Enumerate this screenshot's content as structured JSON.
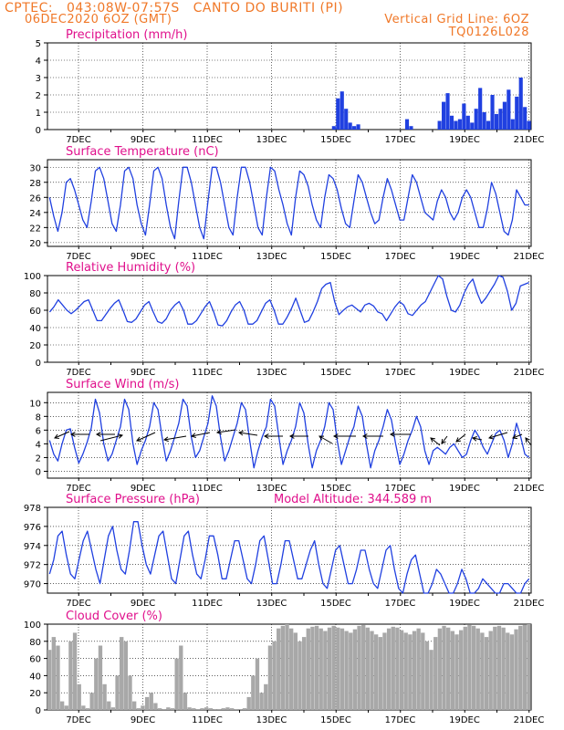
{
  "header": {
    "line1_left": "CPTEC:   043:08W-07:57S   CANTO DO BURITI (PI)",
    "line2_left": "06DEC2020 6OZ (GMT)",
    "line2_right": "Vertical Grid Line: 6OZ",
    "line3_right": "TQ0126L028"
  },
  "colors": {
    "header": "#f07828",
    "title": "#e0108c",
    "line": "#2040e0",
    "cloud": "#a8a8a8",
    "grid": "#000000"
  },
  "x_axis_labels": [
    "7DEC",
    "9DEC",
    "11DEC",
    "13DEC",
    "15DEC",
    "17DEC",
    "19DEC",
    "21DEC"
  ],
  "chart_data": [
    {
      "type": "bar",
      "title": "Precipitation (mm/h)",
      "ylim": [
        0,
        5
      ],
      "yticks": [
        0,
        1,
        2,
        3,
        4,
        5
      ],
      "x_start": "06DEC2020 06Z",
      "step_hours": 3,
      "series": [
        {
          "values": [
            0,
            0,
            0,
            0,
            0,
            0,
            0,
            0,
            0,
            0,
            0,
            0,
            0,
            0,
            0,
            0,
            0,
            0,
            0,
            0,
            0,
            0,
            0,
            0,
            0,
            0,
            0,
            0,
            0,
            0,
            0,
            0,
            0,
            0,
            0,
            0,
            0,
            0,
            0,
            0,
            0,
            0,
            0,
            0,
            0,
            0,
            0,
            0,
            0,
            0,
            0,
            0,
            0,
            0,
            0,
            0,
            0,
            0,
            0,
            0,
            0,
            0,
            0,
            0,
            0,
            0,
            0,
            0,
            0,
            0,
            0.2,
            1.8,
            2.2,
            1.2,
            0.4,
            0.2,
            0.3,
            0,
            0,
            0,
            0,
            0,
            0,
            0,
            0,
            0,
            0,
            0,
            0.6,
            0.2,
            0,
            0,
            0,
            0,
            0,
            0,
            0.5,
            1.6,
            2.1,
            0.8,
            0.5,
            0.6,
            1.5,
            0.8,
            0.4,
            1.2,
            2.4,
            1.0,
            0.5,
            2.0,
            0.9,
            1.2,
            1.6,
            2.3,
            0.6,
            1.9,
            3.0,
            1.3,
            0.5
          ]
        }
      ]
    },
    {
      "type": "line",
      "title": "Surface Temperature (nC)",
      "ylim": [
        19.5,
        31
      ],
      "yticks": [
        20,
        22,
        24,
        26,
        28,
        30
      ],
      "x_start": "06DEC2020 06Z",
      "step_hours": 3,
      "series": [
        {
          "values": [
            26,
            23.5,
            21.5,
            24,
            28,
            28.5,
            27,
            25,
            23,
            22,
            25.5,
            29.5,
            30,
            28.5,
            25.5,
            22.5,
            21.5,
            25,
            29.5,
            30,
            28.5,
            25,
            22.5,
            21,
            25,
            29.5,
            30,
            28.5,
            25,
            22,
            20.5,
            25.5,
            30,
            30,
            28,
            25,
            22,
            20.5,
            25.5,
            30,
            30,
            28,
            25,
            22,
            21,
            26,
            30,
            30,
            28,
            25,
            22,
            21,
            26,
            30,
            29.5,
            27,
            25,
            22.5,
            21,
            26,
            29.5,
            29,
            27.5,
            25,
            23,
            22,
            26,
            29,
            28.5,
            27,
            24.5,
            22.5,
            22,
            25.5,
            29,
            28,
            26,
            24,
            22.5,
            23,
            26,
            28.5,
            27,
            25,
            23,
            23,
            26,
            29,
            28,
            26,
            24,
            23.5,
            23,
            25.5,
            27,
            26,
            24,
            23,
            24,
            26,
            27,
            26,
            24,
            22,
            22,
            24.5,
            28,
            26.5,
            24,
            21.5,
            21,
            23,
            27,
            26,
            25,
            25
          ]
        }
      ]
    },
    {
      "type": "line",
      "title": "Relative Humidity (%)",
      "ylim": [
        0,
        100
      ],
      "yticks": [
        0,
        20,
        40,
        60,
        80,
        100
      ],
      "x_start": "06DEC2020 06Z",
      "step_hours": 3,
      "series": [
        {
          "values": [
            58,
            64,
            72,
            66,
            60,
            56,
            60,
            65,
            70,
            72,
            60,
            48,
            48,
            55,
            62,
            68,
            72,
            60,
            47,
            46,
            50,
            58,
            66,
            70,
            58,
            47,
            45,
            50,
            60,
            66,
            70,
            60,
            44,
            44,
            48,
            56,
            64,
            70,
            58,
            43,
            42,
            48,
            58,
            66,
            70,
            60,
            44,
            44,
            48,
            58,
            68,
            72,
            60,
            44,
            44,
            52,
            62,
            74,
            60,
            46,
            48,
            58,
            70,
            85,
            90,
            92,
            70,
            55,
            60,
            64,
            66,
            62,
            58,
            66,
            68,
            65,
            58,
            56,
            48,
            56,
            64,
            70,
            66,
            56,
            54,
            60,
            66,
            70,
            80,
            90,
            100,
            96,
            76,
            60,
            58,
            66,
            80,
            90,
            96,
            80,
            68,
            74,
            82,
            90,
            100,
            98,
            82,
            60,
            68,
            88,
            90,
            92
          ]
        }
      ]
    },
    {
      "type": "line",
      "title": "Surface Wind (m/s)",
      "ylim": [
        -1,
        11.5
      ],
      "yticks": [
        0,
        2,
        4,
        6,
        8,
        10
      ],
      "x_start": "06DEC2020 06Z",
      "step_hours": 3,
      "series": [
        {
          "values": [
            4.5,
            2.5,
            1.5,
            4,
            6,
            6.2,
            3.5,
            1.2,
            2.5,
            4.2,
            6.3,
            10.5,
            8.5,
            4,
            1.5,
            2.5,
            4.5,
            6.5,
            10.5,
            9,
            4,
            1,
            3,
            4.5,
            6.5,
            10,
            9,
            5,
            1.5,
            3,
            5,
            7,
            10.5,
            9.5,
            5,
            2,
            3,
            5,
            7,
            11,
            9.5,
            5,
            1.5,
            3,
            5,
            7,
            10,
            9,
            4.5,
            0.5,
            3,
            5,
            6.5,
            10.5,
            9.5,
            5,
            1,
            3,
            4.5,
            6.5,
            10,
            8.5,
            4,
            0.5,
            3,
            4.5,
            6.5,
            10,
            9,
            4.5,
            1,
            3,
            5,
            6.5,
            9.5,
            8,
            4,
            0.5,
            3,
            4.5,
            6.5,
            9,
            7.5,
            4,
            1,
            2.5,
            4.5,
            6,
            8,
            6.5,
            3,
            1,
            3,
            3.5,
            3,
            2.5,
            3.5,
            4,
            3,
            2,
            2.5,
            4.5,
            6,
            5,
            3.5,
            2.5,
            4,
            5.5,
            6,
            4.5,
            2,
            4,
            7,
            5,
            2.5,
            2
          ]
        }
      ]
    },
    {
      "type": "line",
      "title": "Surface Pressure (hPa)",
      "subtitle": "Model Altitude: 344.589 m",
      "ylim": [
        969,
        978
      ],
      "yticks": [
        970,
        972,
        974,
        976,
        978
      ],
      "x_start": "06DEC2020 06Z",
      "step_hours": 3,
      "series": [
        {
          "values": [
            971,
            972.5,
            975,
            975.5,
            973,
            971,
            970.5,
            972.5,
            974.5,
            975.5,
            973.5,
            971.5,
            970,
            972.5,
            975,
            976,
            973.5,
            971.5,
            971,
            973.5,
            976.5,
            976.5,
            974,
            972,
            971,
            973,
            975,
            975.5,
            973,
            970.5,
            970,
            972.5,
            975,
            975.5,
            973,
            971,
            970.5,
            972.5,
            975,
            975,
            973,
            970.5,
            970.5,
            972.5,
            974.5,
            974.5,
            972.5,
            970.5,
            970,
            972,
            974.5,
            975,
            972.5,
            970,
            970,
            972,
            974.5,
            974.5,
            972.5,
            970.5,
            970.5,
            972,
            973.5,
            974.5,
            972,
            970,
            969.5,
            971.5,
            973.5,
            974,
            972,
            970,
            970,
            971.5,
            973.5,
            973.5,
            971.5,
            970,
            969.5,
            971.5,
            973.5,
            974,
            971.5,
            969.5,
            969,
            971,
            972.5,
            973,
            971,
            969,
            969,
            970,
            971.5,
            971,
            970,
            969,
            969,
            970,
            971.5,
            970.5,
            969,
            969,
            969.5,
            970.5,
            970,
            969.5,
            969,
            969,
            970,
            970,
            969.5,
            969,
            969,
            970,
            970.5
          ]
        }
      ]
    },
    {
      "type": "bar",
      "title": "Cloud Cover (%)",
      "ylim": [
        0,
        100
      ],
      "yticks": [
        0,
        20,
        40,
        60,
        80,
        100
      ],
      "x_start": "06DEC2020 06Z",
      "step_hours": 3,
      "series": [
        {
          "values": [
            70,
            85,
            75,
            10,
            5,
            80,
            90,
            30,
            5,
            2,
            20,
            60,
            75,
            30,
            10,
            3,
            40,
            85,
            80,
            40,
            10,
            2,
            5,
            15,
            20,
            8,
            2,
            1,
            3,
            2,
            60,
            75,
            20,
            3,
            2,
            1,
            2,
            3,
            2,
            1,
            1,
            2,
            3,
            2,
            1,
            1,
            2,
            15,
            40,
            60,
            20,
            30,
            75,
            80,
            95,
            98,
            100,
            95,
            90,
            80,
            85,
            95,
            97,
            98,
            95,
            92,
            96,
            98,
            96,
            95,
            92,
            90,
            94,
            98,
            99,
            96,
            92,
            88,
            85,
            90,
            95,
            97,
            96,
            93,
            90,
            88,
            92,
            95,
            90,
            80,
            70,
            85,
            95,
            98,
            96,
            92,
            88,
            93,
            97,
            99,
            98,
            95,
            90,
            85,
            92,
            97,
            98,
            96,
            90,
            88,
            94,
            98,
            99,
            100
          ]
        }
      ]
    }
  ]
}
